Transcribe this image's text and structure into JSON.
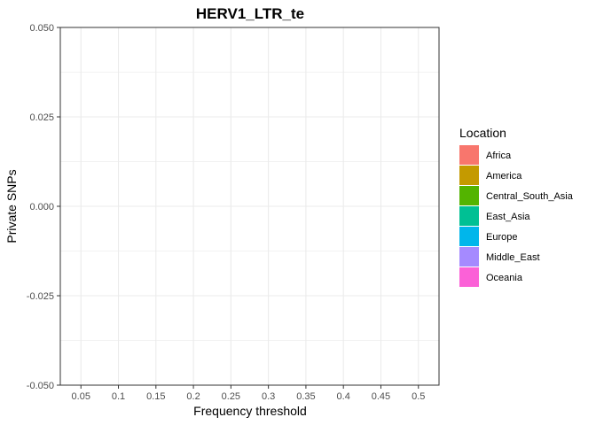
{
  "chart_data": {
    "type": "bar",
    "title": "HERV1_LTR_te",
    "xlabel": "Frequency threshold",
    "ylabel": "Private SNPs",
    "categories": [
      "0.05",
      "0.1",
      "0.15",
      "0.2",
      "0.25",
      "0.3",
      "0.35",
      "0.4",
      "0.45",
      "0.5"
    ],
    "ylim": [
      -0.05,
      0.05
    ],
    "yticks": [
      -0.05,
      -0.025,
      0.0,
      0.025,
      0.05
    ],
    "ytick_labels": [
      "-0.050",
      "-0.025",
      "0.000",
      "0.025",
      "0.050"
    ],
    "grid": true,
    "legend": {
      "title": "Location",
      "position": "right",
      "entries": [
        {
          "name": "Africa",
          "color": "#F8766D"
        },
        {
          "name": "America",
          "color": "#C49A00"
        },
        {
          "name": "Central_South_Asia",
          "color": "#53B400"
        },
        {
          "name": "East_Asia",
          "color": "#00C094"
        },
        {
          "name": "Europe",
          "color": "#00B6EB"
        },
        {
          "name": "Middle_East",
          "color": "#A58AFF"
        },
        {
          "name": "Oceania",
          "color": "#FB61D7"
        }
      ]
    },
    "series": []
  }
}
